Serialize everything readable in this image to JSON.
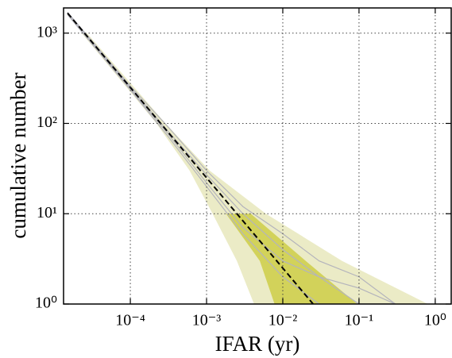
{
  "chart_data": {
    "type": "line",
    "log_x": true,
    "log_y": true,
    "grid": true,
    "xlabel": "IFAR (yr)",
    "ylabel": "cumulative number",
    "xlim": [
      1.33e-05,
      1.62
    ],
    "ylim": [
      1,
      1900
    ],
    "xticks": [
      {
        "value": 0.0001,
        "label": "10⁻⁴"
      },
      {
        "value": 0.001,
        "label": "10⁻³"
      },
      {
        "value": 0.01,
        "label": "10⁻²"
      },
      {
        "value": 0.1,
        "label": "10⁻¹"
      },
      {
        "value": 1,
        "label": "10⁰"
      }
    ],
    "yticks": [
      {
        "value": 1,
        "label": "10⁰"
      },
      {
        "value": 10,
        "label": "10¹"
      },
      {
        "value": 100,
        "label": "10²"
      },
      {
        "value": 1000,
        "label": "10³"
      }
    ],
    "bands": [
      {
        "color": "#ebebc6",
        "values": [
          1000,
          100,
          30,
          10,
          3,
          1
        ],
        "x_low": [
          2.3e-05,
          0.00022,
          0.0006,
          0.0012,
          0.0025,
          0.0042
        ],
        "x_high": [
          2.7e-05,
          0.00029,
          0.0011,
          0.006,
          0.06,
          0.8
        ]
      },
      {
        "color": "#d2d25a",
        "values": [
          10,
          3,
          1
        ],
        "x_low": [
          0.0018,
          0.005,
          0.0078
        ],
        "x_high": [
          0.0038,
          0.02,
          0.095
        ]
      }
    ],
    "lines": [
      {
        "color": "#b4b4bc",
        "x": [
          1.5e-05,
          0.0001,
          0.0003,
          0.001,
          0.003,
          0.01,
          0.03,
          0.1,
          0.3
        ],
        "values": [
          1700,
          250,
          85,
          27,
          10,
          4,
          2,
          1.5,
          1
        ]
      },
      {
        "color": "#b4b4bc",
        "x": [
          1.5e-05,
          0.0001,
          0.0003,
          0.001,
          0.003,
          0.01,
          0.03,
          0.1,
          0.3
        ],
        "values": [
          1650,
          240,
          80,
          22,
          7,
          3,
          2,
          1,
          1
        ]
      },
      {
        "color": "#b4b4bc",
        "x": [
          1.5e-05,
          0.0001,
          0.0003,
          0.001,
          0.003,
          0.01,
          0.03,
          0.1,
          0.3
        ],
        "values": [
          1700,
          260,
          95,
          30,
          12,
          6,
          3,
          2,
          1
        ]
      },
      {
        "color": "#b4b4bc",
        "x": [
          1.5e-05,
          0.0001,
          0.0003,
          0.001,
          0.003,
          0.01,
          0.03,
          0.1,
          0.3
        ],
        "values": [
          1600,
          235,
          75,
          20,
          6,
          2,
          1,
          1,
          1
        ]
      }
    ],
    "expected": {
      "color": "#000000",
      "x": [
        1.5e-05,
        0.025
      ],
      "values": [
        1667,
        1
      ]
    }
  }
}
